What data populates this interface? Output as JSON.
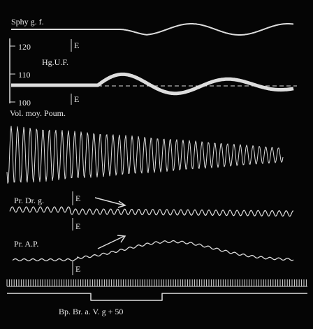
{
  "traces": {
    "sphygmo": {
      "label": "Sphy g. f."
    },
    "pressure": {
      "label": "Hg.U.F.",
      "scale": [
        "120",
        "110",
        "100"
      ],
      "marks": [
        "E",
        "E"
      ]
    },
    "volume": {
      "label": "Vol. moy. Poum."
    },
    "right_pressure": {
      "label": "Pr. Dr. g.",
      "marks": [
        "E",
        "E"
      ]
    },
    "pulmonary": {
      "label": "Pr. A.P.",
      "marks": [
        "E"
      ]
    },
    "signal": {
      "label": "Bp. Br. a. V. g + 50"
    }
  }
}
